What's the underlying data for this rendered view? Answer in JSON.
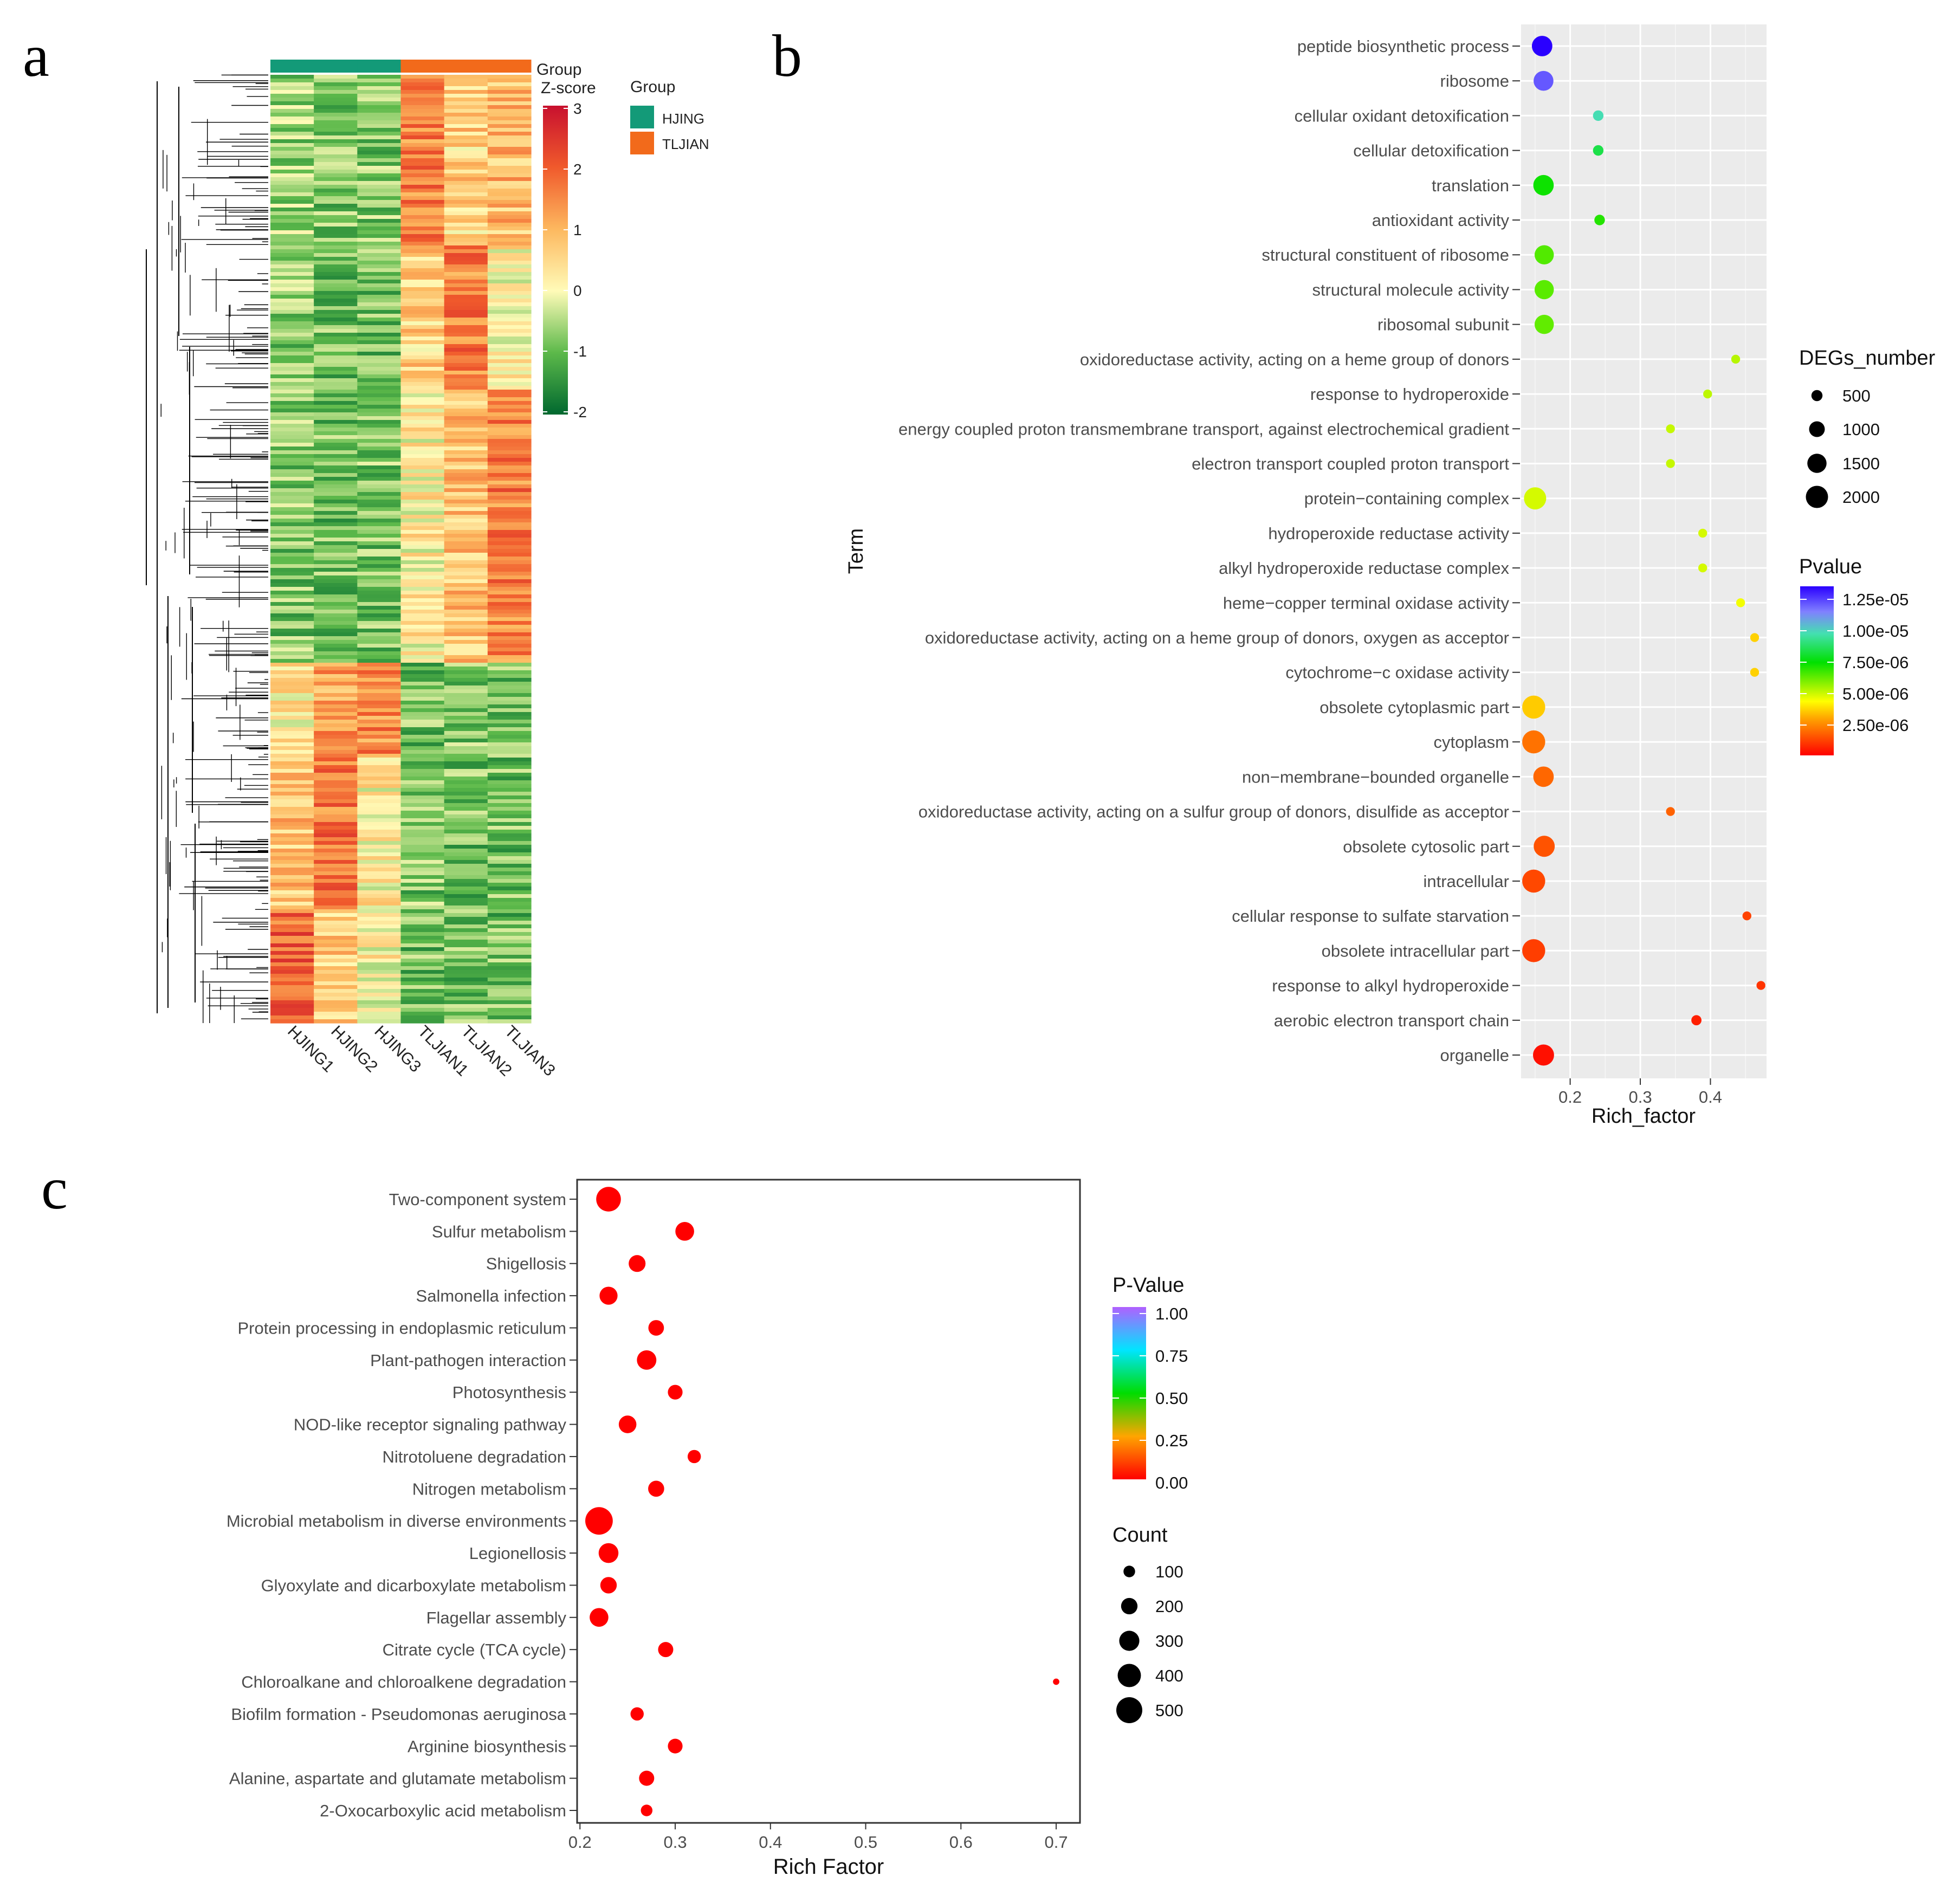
{
  "panels": {
    "a": "a",
    "b": "b",
    "c": "c"
  },
  "chart_data": [
    {
      "type": "heatmap",
      "panel": "a",
      "columns": [
        "HJING1",
        "HJING2",
        "HJING3",
        "TLJIAN1",
        "TLJIAN2",
        "TLJIAN3"
      ],
      "column_groups": [
        "HJING",
        "HJING",
        "HJING",
        "TLJIAN",
        "TLJIAN",
        "TLJIAN"
      ],
      "group_bar_label": "Group",
      "colorbar_title": "Z-score",
      "colorbar_ticks": [
        "3",
        "2",
        "1",
        "0",
        "-1",
        "-2"
      ],
      "colorbar_range": [
        -2,
        3
      ],
      "legend_title": "Group",
      "legend": [
        {
          "name": "HJING",
          "color": "#139a78"
        },
        {
          "name": "TLJIAN",
          "color": "#f26a1b"
        }
      ],
      "colors": {
        "high": "#c8102e",
        "mid": "#fffbb8",
        "low": "#00682f"
      }
    },
    {
      "type": "scatter",
      "panel": "b",
      "xlabel": "Rich_factor",
      "ylabel": "Term",
      "xlim": [
        0.13,
        0.48
      ],
      "xticks": [
        0.2,
        0.3,
        0.4
      ],
      "xtick_labels": [
        "0.2",
        "0.3",
        "0.4"
      ],
      "size_legend_title": "DEGs_number",
      "size_legend": [
        500,
        1000,
        1500,
        2000
      ],
      "size_legend_labels": [
        "500",
        "1000",
        "1500",
        "2000"
      ],
      "color_legend_title": "Pvalue",
      "color_legend_ticks": [
        "1.25e-05",
        "1.00e-05",
        "7.50e-06",
        "5.00e-06",
        "2.50e-06"
      ],
      "terms": [
        "peptide biosynthetic process",
        "ribosome",
        "cellular oxidant detoxification",
        "cellular detoxification",
        "translation",
        "antioxidant activity",
        "structural constituent of ribosome",
        "structural molecule activity",
        "ribosomal subunit",
        "oxidoreductase activity, acting on a heme group of donors",
        "response to hydroperoxide",
        "energy coupled proton transmembrane transport, against electrochemical gradient",
        "electron transport coupled proton transport",
        "protein−containing complex",
        "hydroperoxide reductase activity",
        "alkyl hydroperoxide reductase complex",
        "heme−copper terminal oxidase activity",
        "oxidoreductase activity, acting on a heme group of donors, oxygen as acceptor",
        "cytochrome−c oxidase activity",
        "obsolete cytoplasmic part",
        "cytoplasm",
        "non−membrane−bounded organelle",
        "oxidoreductase activity, acting on a sulfur group of donors, disulfide as acceptor",
        "obsolete cytosolic part",
        "intracellular",
        "cellular response to sulfate starvation",
        "obsolete intracellular part",
        "response to alkyl hydroperoxide",
        "aerobic electron transport chain",
        "organelle"
      ],
      "rich_factor": [
        0.16,
        0.162,
        0.24,
        0.24,
        0.162,
        0.242,
        0.163,
        0.163,
        0.163,
        0.436,
        0.396,
        0.343,
        0.343,
        0.15,
        0.389,
        0.389,
        0.443,
        0.463,
        0.463,
        0.148,
        0.148,
        0.162,
        0.343,
        0.163,
        0.148,
        0.452,
        0.148,
        0.472,
        0.38,
        0.162
      ],
      "degs_number": [
        1700,
        1600,
        450,
        450,
        1700,
        450,
        1500,
        1500,
        1500,
        320,
        320,
        320,
        320,
        2000,
        320,
        320,
        320,
        320,
        320,
        2150,
        2150,
        1700,
        320,
        1800,
        2150,
        320,
        2150,
        320,
        420,
        1800
      ],
      "pvalue": [
        1.45e-05,
        1.3e-05,
        1.05e-05,
        9e-06,
        7.8e-06,
        7.5e-06,
        6.9e-06,
        6.8e-06,
        6.7e-06,
        5.6e-06,
        5.5e-06,
        5.4e-06,
        5.4e-06,
        5.2e-06,
        5.2e-06,
        5.2e-06,
        4.8e-06,
        3.9e-06,
        3.9e-06,
        3.8e-06,
        2.2e-06,
        2e-06,
        1.9e-06,
        1.6e-06,
        1.4e-06,
        1.3e-06,
        1.2e-06,
        1e-06,
        6e-07,
        3e-07
      ]
    },
    {
      "type": "scatter",
      "panel": "c",
      "xlabel": "Rich Factor",
      "ylabel": "",
      "xlim": [
        0.197,
        0.725
      ],
      "xticks": [
        0.2,
        0.3,
        0.4,
        0.5,
        0.6,
        0.7
      ],
      "xtick_labels": [
        "0.2",
        "0.3",
        "0.4",
        "0.5",
        "0.6",
        "0.7"
      ],
      "color_legend_title": "P-Value",
      "color_legend_ticks": [
        "1.00",
        "0.75",
        "0.50",
        "0.25",
        "0.00"
      ],
      "size_legend_title": "Count",
      "size_legend": [
        100,
        200,
        300,
        400,
        500
      ],
      "size_legend_labels": [
        "100",
        "200",
        "300",
        "400",
        "500"
      ],
      "terms": [
        "Two-component system",
        "Sulfur metabolism",
        "Shigellosis",
        "Salmonella infection",
        "Protein processing in endoplasmic reticulum",
        "Plant-pathogen interaction",
        "Photosynthesis",
        "NOD-like receptor signaling pathway",
        "Nitrotoluene degradation",
        "Nitrogen metabolism",
        "Microbial metabolism in diverse environments",
        "Legionellosis",
        "Glyoxylate and dicarboxylate metabolism",
        "Flagellar assembly",
        "Citrate cycle (TCA cycle)",
        "Chloroalkane and chloroalkene degradation",
        "Biofilm formation - Pseudomonas aeruginosa",
        "Arginine biosynthesis",
        "Alanine, aspartate and glutamate metabolism",
        "2-Oxocarboxylic acid metabolism"
      ],
      "rich_factor": [
        0.23,
        0.31,
        0.26,
        0.23,
        0.28,
        0.27,
        0.3,
        0.25,
        0.32,
        0.28,
        0.22,
        0.23,
        0.23,
        0.22,
        0.29,
        0.7,
        0.26,
        0.3,
        0.27,
        0.27
      ],
      "count": [
        450,
        260,
        210,
        240,
        180,
        280,
        160,
        230,
        130,
        190,
        560,
        290,
        200,
        260,
        170,
        30,
        130,
        160,
        170,
        100
      ],
      "p_value": [
        0.0,
        0.0,
        0.0,
        0.0,
        0.0,
        0.0,
        0.0,
        0.0,
        0.0,
        0.0,
        0.0,
        0.0,
        0.0,
        0.0,
        0.0,
        0.0,
        0.0,
        0.0,
        0.0,
        0.0
      ]
    }
  ]
}
